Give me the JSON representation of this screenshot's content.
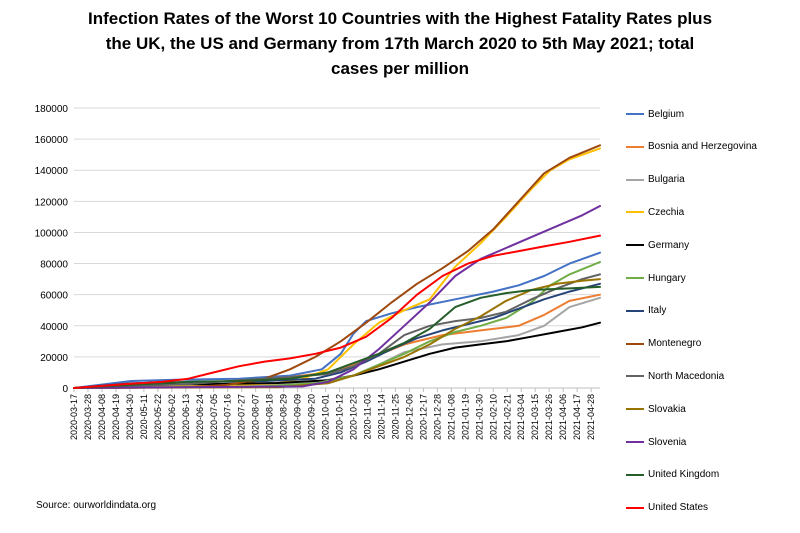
{
  "chart_data": {
    "type": "line",
    "title_lines": [
      "Infection Rates of the Worst 10 Countries with the Highest Fatality Rates plus",
      "the UK, the US and Germany from 17th March 2020 to 5th May 2021; total",
      "cases per million"
    ],
    "ylim": [
      0,
      180000
    ],
    "yticks": [
      "0",
      "20000",
      "40000",
      "60000",
      "80000",
      "100000",
      "120000",
      "140000",
      "160000",
      "180000"
    ],
    "yticks_values": [
      0,
      20000,
      40000,
      60000,
      80000,
      100000,
      120000,
      140000,
      160000,
      180000
    ],
    "categories": [
      "2020-03-17",
      "2020-03-28",
      "2020-04-08",
      "2020-04-19",
      "2020-04-30",
      "2020-05-11",
      "2020-05-22",
      "2020-06-02",
      "2020-06-13",
      "2020-06-24",
      "2020-07-05",
      "2020-07-16",
      "2020-07-27",
      "2020-08-07",
      "2020-08-18",
      "2020-08-29",
      "2020-09-09",
      "2020-09-20",
      "2020-10-01",
      "2020-10-12",
      "2020-10-23",
      "2020-11-03",
      "2020-11-14",
      "2020-11-25",
      "2020-12-06",
      "2020-12-17",
      "2020-12-28",
      "2021-01-08",
      "2021-01-19",
      "2021-01-30",
      "2021-02-10",
      "2021-02-21",
      "2021-03-04",
      "2021-03-15",
      "2021-03-26",
      "2021-04-06",
      "2021-04-17",
      "2021-04-28"
    ],
    "x_day_range": [
      0,
      414
    ],
    "x_tick_spacing_days": 11,
    "series": [
      {
        "name": "Belgium",
        "color": "#4472C4",
        "points": [
          [
            0,
            0
          ],
          [
            45,
            4500
          ],
          [
            80,
            5300
          ],
          [
            130,
            6000
          ],
          [
            170,
            8000
          ],
          [
            195,
            12000
          ],
          [
            210,
            22000
          ],
          [
            220,
            35000
          ],
          [
            230,
            43000
          ],
          [
            250,
            48000
          ],
          [
            270,
            52000
          ],
          [
            300,
            57000
          ],
          [
            330,
            62000
          ],
          [
            350,
            66000
          ],
          [
            370,
            72000
          ],
          [
            390,
            80000
          ],
          [
            414,
            87000
          ]
        ]
      },
      {
        "name": "Bosnia and Herzegovina",
        "color": "#ED7D31",
        "points": [
          [
            0,
            0
          ],
          [
            90,
            500
          ],
          [
            130,
            3000
          ],
          [
            170,
            7000
          ],
          [
            200,
            10000
          ],
          [
            230,
            18000
          ],
          [
            260,
            28000
          ],
          [
            290,
            34000
          ],
          [
            320,
            37000
          ],
          [
            350,
            40000
          ],
          [
            370,
            47000
          ],
          [
            390,
            56000
          ],
          [
            414,
            60000
          ]
        ]
      },
      {
        "name": "Bulgaria",
        "color": "#A5A5A5",
        "points": [
          [
            0,
            0
          ],
          [
            100,
            500
          ],
          [
            150,
            2000
          ],
          [
            190,
            4000
          ],
          [
            220,
            8000
          ],
          [
            240,
            15000
          ],
          [
            260,
            23000
          ],
          [
            290,
            28000
          ],
          [
            320,
            30000
          ],
          [
            350,
            34000
          ],
          [
            370,
            40000
          ],
          [
            390,
            52000
          ],
          [
            414,
            58000
          ]
        ]
      },
      {
        "name": "Czechia",
        "color": "#FFC000",
        "points": [
          [
            0,
            0
          ],
          [
            90,
            1000
          ],
          [
            160,
            3000
          ],
          [
            180,
            6000
          ],
          [
            200,
            12000
          ],
          [
            220,
            28000
          ],
          [
            240,
            42000
          ],
          [
            260,
            50000
          ],
          [
            280,
            57000
          ],
          [
            300,
            78000
          ],
          [
            320,
            93000
          ],
          [
            340,
            110000
          ],
          [
            360,
            128000
          ],
          [
            375,
            140000
          ],
          [
            390,
            147000
          ],
          [
            414,
            154000
          ]
        ]
      },
      {
        "name": "Germany",
        "color": "#000000",
        "points": [
          [
            0,
            0
          ],
          [
            40,
            2000
          ],
          [
            100,
            2500
          ],
          [
            160,
            3200
          ],
          [
            200,
            5000
          ],
          [
            220,
            8000
          ],
          [
            240,
            12000
          ],
          [
            260,
            17000
          ],
          [
            280,
            22000
          ],
          [
            300,
            26000
          ],
          [
            320,
            28000
          ],
          [
            340,
            30000
          ],
          [
            360,
            33000
          ],
          [
            380,
            36000
          ],
          [
            400,
            39000
          ],
          [
            414,
            42000
          ]
        ]
      },
      {
        "name": "Hungary",
        "color": "#70AD47",
        "points": [
          [
            0,
            0
          ],
          [
            150,
            1000
          ],
          [
            190,
            3000
          ],
          [
            220,
            8000
          ],
          [
            240,
            15000
          ],
          [
            260,
            22000
          ],
          [
            280,
            30000
          ],
          [
            300,
            36000
          ],
          [
            320,
            40000
          ],
          [
            340,
            45000
          ],
          [
            360,
            55000
          ],
          [
            375,
            66000
          ],
          [
            390,
            73000
          ],
          [
            414,
            81000
          ]
        ]
      },
      {
        "name": "Italy",
        "color": "#264478",
        "points": [
          [
            0,
            0
          ],
          [
            45,
            3000
          ],
          [
            100,
            4000
          ],
          [
            150,
            4500
          ],
          [
            190,
            6000
          ],
          [
            210,
            10000
          ],
          [
            230,
            17000
          ],
          [
            250,
            25000
          ],
          [
            270,
            32000
          ],
          [
            290,
            37000
          ],
          [
            310,
            41000
          ],
          [
            330,
            45000
          ],
          [
            350,
            51000
          ],
          [
            370,
            57000
          ],
          [
            390,
            62000
          ],
          [
            414,
            67000
          ]
        ]
      },
      {
        "name": "Montenegro",
        "color": "#9E480E",
        "points": [
          [
            0,
            0
          ],
          [
            90,
            500
          ],
          [
            120,
            2000
          ],
          [
            150,
            6000
          ],
          [
            170,
            12000
          ],
          [
            190,
            20000
          ],
          [
            210,
            30000
          ],
          [
            230,
            42000
          ],
          [
            250,
            55000
          ],
          [
            270,
            67000
          ],
          [
            290,
            77000
          ],
          [
            310,
            88000
          ],
          [
            330,
            102000
          ],
          [
            350,
            120000
          ],
          [
            370,
            138000
          ],
          [
            390,
            148000
          ],
          [
            414,
            156000
          ]
        ]
      },
      {
        "name": "North Macedonia",
        "color": "#636363",
        "points": [
          [
            0,
            0
          ],
          [
            90,
            2500
          ],
          [
            130,
            5000
          ],
          [
            170,
            7000
          ],
          [
            200,
            9000
          ],
          [
            220,
            14000
          ],
          [
            240,
            22000
          ],
          [
            260,
            34000
          ],
          [
            280,
            40000
          ],
          [
            300,
            43000
          ],
          [
            320,
            45000
          ],
          [
            340,
            49000
          ],
          [
            360,
            57000
          ],
          [
            380,
            64000
          ],
          [
            400,
            70000
          ],
          [
            414,
            73000
          ]
        ]
      },
      {
        "name": "Slovakia",
        "color": "#997300",
        "points": [
          [
            0,
            0
          ],
          [
            160,
            500
          ],
          [
            200,
            3000
          ],
          [
            220,
            8000
          ],
          [
            240,
            14000
          ],
          [
            260,
            20000
          ],
          [
            280,
            28000
          ],
          [
            300,
            38000
          ],
          [
            320,
            46000
          ],
          [
            340,
            56000
          ],
          [
            360,
            63000
          ],
          [
            380,
            67000
          ],
          [
            400,
            69000
          ],
          [
            414,
            70000
          ]
        ]
      },
      {
        "name": "Slovenia",
        "color": "#7030A0",
        "points": [
          [
            0,
            0
          ],
          [
            180,
            1000
          ],
          [
            200,
            4000
          ],
          [
            220,
            12000
          ],
          [
            240,
            25000
          ],
          [
            260,
            40000
          ],
          [
            280,
            55000
          ],
          [
            300,
            72000
          ],
          [
            320,
            83000
          ],
          [
            340,
            90000
          ],
          [
            360,
            97000
          ],
          [
            380,
            104000
          ],
          [
            400,
            111000
          ],
          [
            414,
            117000
          ]
        ]
      },
      {
        "name": "United Kingdom",
        "color": "#255E28",
        "points": [
          [
            0,
            0
          ],
          [
            45,
            2000
          ],
          [
            90,
            4000
          ],
          [
            130,
            4500
          ],
          [
            170,
            6000
          ],
          [
            200,
            10000
          ],
          [
            220,
            16000
          ],
          [
            240,
            22000
          ],
          [
            260,
            29000
          ],
          [
            280,
            38000
          ],
          [
            300,
            52000
          ],
          [
            320,
            58000
          ],
          [
            340,
            61000
          ],
          [
            360,
            63000
          ],
          [
            390,
            64000
          ],
          [
            414,
            65000
          ]
        ]
      },
      {
        "name": "United States",
        "color": "#FF0000",
        "points": [
          [
            0,
            0
          ],
          [
            40,
            2500
          ],
          [
            70,
            4000
          ],
          [
            90,
            6000
          ],
          [
            110,
            10000
          ],
          [
            130,
            14000
          ],
          [
            150,
            17000
          ],
          [
            170,
            19000
          ],
          [
            190,
            22000
          ],
          [
            210,
            26000
          ],
          [
            230,
            33000
          ],
          [
            250,
            45000
          ],
          [
            270,
            60000
          ],
          [
            290,
            72000
          ],
          [
            310,
            80000
          ],
          [
            330,
            85000
          ],
          [
            350,
            88000
          ],
          [
            370,
            91000
          ],
          [
            390,
            94000
          ],
          [
            414,
            98000
          ]
        ]
      }
    ]
  },
  "source_text": "Source: ourworldindata.org"
}
